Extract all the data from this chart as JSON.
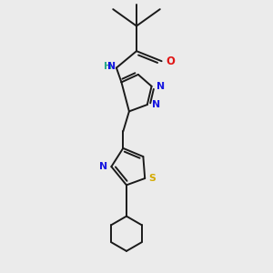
{
  "background_color": "#ebebeb",
  "bond_color": "#1a1a1a",
  "n_color": "#1515e0",
  "o_color": "#e01515",
  "s_color": "#d4aa00",
  "h_color": "#2aaa8a",
  "figsize": [
    3.0,
    3.0
  ],
  "dpi": 100,
  "xlim": [
    -1.5,
    2.5
  ],
  "ylim": [
    -4.2,
    3.8
  ]
}
